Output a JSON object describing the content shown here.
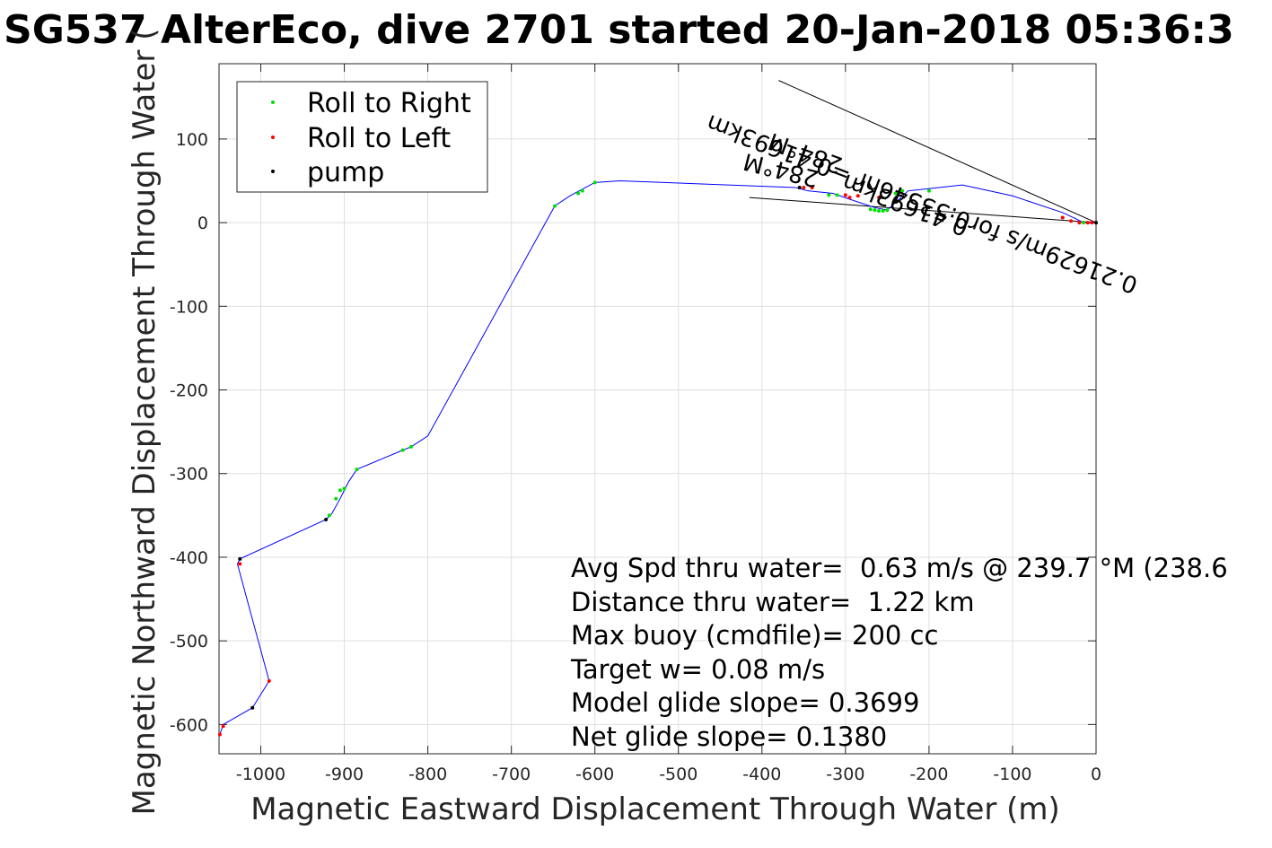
{
  "chart_data": {
    "type": "line",
    "title": "SG537 AlterEco, dive 2701 started 20-Jan-2018 05:36:3",
    "xlabel": "Magnetic Eastward Displacement Through Water (m)",
    "ylabel": "Magnetic Northward Displacement Through Water (",
    "xlim": [
      -1050,
      0
    ],
    "ylim": [
      -635,
      190
    ],
    "x_ticks": [
      -1000,
      -900,
      -800,
      -700,
      -600,
      -500,
      -400,
      -300,
      -200,
      -100,
      0
    ],
    "x_tick_labels": [
      "-1000",
      "-900",
      "-800",
      "-700",
      "-600",
      "-500",
      "-400",
      "-300",
      "-200",
      "-100",
      "0"
    ],
    "y_ticks": [
      100,
      0,
      -100,
      -200,
      -300,
      -400,
      -500,
      -600
    ],
    "y_tick_labels": [
      "100",
      "0",
      "-100",
      "-200",
      "-300",
      "-400",
      "-500",
      "-600"
    ],
    "grid": true,
    "legend_position": "top-left",
    "legend": [
      {
        "label": "Roll to Right",
        "color": "#00e000"
      },
      {
        "label": "Roll to Left",
        "color": "#ff0000"
      },
      {
        "label": "pump",
        "color": "#000000"
      }
    ],
    "series": [
      {
        "name": "track",
        "color": "#0000ff",
        "x": [
          0,
          -5,
          -15,
          -25,
          -40,
          -100,
          -160,
          -225,
          -250,
          -265,
          -295,
          -315,
          -345,
          -360,
          -570,
          -600,
          -615,
          -630,
          -648,
          -800,
          -820,
          -830,
          -885,
          -895,
          -905,
          -915,
          -922,
          -1025,
          -1028,
          -990,
          -1010,
          -1045,
          -1049
        ],
        "y": [
          0,
          0,
          0,
          5,
          12,
          32,
          45,
          38,
          15,
          18,
          28,
          35,
          38,
          42,
          50,
          48,
          40,
          32,
          20,
          -255,
          -268,
          -272,
          -295,
          -310,
          -330,
          -348,
          -355,
          -402,
          -408,
          -548,
          -580,
          -600,
          -612
        ]
      }
    ],
    "roll_right_points": {
      "x": [
        -15,
        -200,
        -240,
        -250,
        -255,
        -260,
        -265,
        -270,
        -232,
        -310,
        -320,
        -600,
        -615,
        -620,
        -648,
        -820,
        -830,
        -885,
        -900,
        -905,
        -910,
        -918
      ],
      "y": [
        0,
        38,
        35,
        15,
        14,
        14,
        15,
        16,
        38,
        33,
        33,
        48,
        38,
        35,
        20,
        -268,
        -272,
        -295,
        -318,
        -320,
        -330,
        -350
      ]
    },
    "roll_left_points": {
      "x": [
        -5,
        -10,
        -20,
        -30,
        -40,
        -260,
        -285,
        -295,
        -300,
        -340,
        -350,
        -1025,
        -990,
        -1045,
        -1049
      ],
      "y": [
        0,
        0,
        0,
        2,
        6,
        30,
        32,
        30,
        33,
        42,
        42,
        -408,
        -548,
        -602,
        -612
      ]
    },
    "pump_points": {
      "x": [
        0,
        -355,
        -922,
        -1025,
        -1010
      ],
      "y": [
        0,
        42,
        -355,
        -402,
        -580
      ]
    },
    "reference_lines": [
      {
        "x": [
          0,
          -380
        ],
        "y": [
          0,
          170
        ]
      },
      {
        "x": [
          0,
          -415
        ],
        "y": [
          0,
          30
        ]
      }
    ],
    "annotations": [
      {
        "text": "0.41693km",
        "x": -225,
        "y": 30,
        "rotation": 201
      },
      {
        "text": "0.21629m/s for0.53546hr =0.41693km",
        "x": -205,
        "y": 31,
        "rotation": 201
      },
      {
        "text": "284°M",
        "x": -375,
        "y": 72,
        "rotation": 194
      },
      {
        "text": "284°M",
        "x": -345,
        "y": 92,
        "rotation": 200
      }
    ],
    "stats": [
      "Avg Spd thru water=  0.63 m/s @ 239.7 °M (238.6",
      "Distance thru water=  1.22 km",
      "Max buoy (cmdfile)= 200 cc",
      "Target w= 0.08 m/s",
      "Model glide slope= 0.3699",
      "Net glide slope= 0.1380"
    ]
  }
}
